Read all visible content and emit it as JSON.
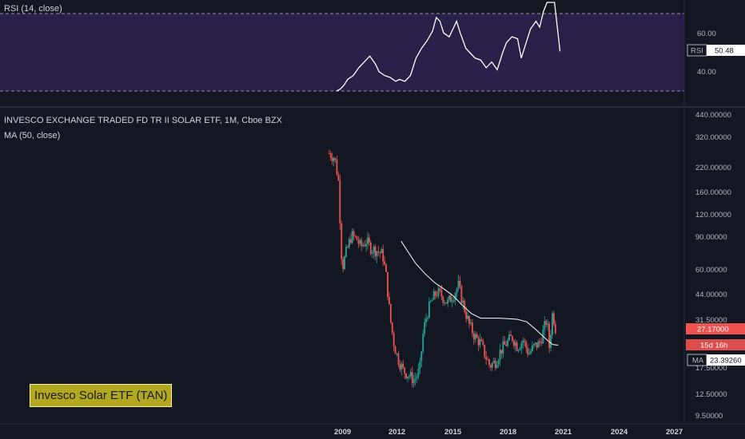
{
  "rsi": {
    "label": "RSI (14, close)",
    "value_tag": "RSI",
    "value": "50.48",
    "y_ticks": [
      "60.00",
      "40.00"
    ],
    "ylim": [
      30,
      85
    ],
    "levels": [
      70,
      30
    ]
  },
  "main": {
    "title": "INVESCO EXCHANGE TRADED FD TR II SOLAR ETF, 1M, Cboe BZX",
    "ma_label": "MA (50, close)",
    "price_ticks": [
      "440.00000",
      "320.00000",
      "220.00000",
      "160.00000",
      "120.00000",
      "90.00000",
      "60.00000",
      "44.00000",
      "31.50000",
      "17.50000",
      "12.50000",
      "9.50000"
    ],
    "last_price": "27.17000",
    "countdown": "15d 16h",
    "ma_tag": "MA",
    "ma_value": "23.39260",
    "x_ticks": [
      "2009",
      "2012",
      "2015",
      "2018",
      "2021",
      "2024",
      "2027"
    ],
    "caption": "Invesco Solar ETF (TAN)"
  },
  "colors": {
    "up": "#26a69a",
    "down": "#ef5350",
    "ma": "#ffffff",
    "rsi": "#ffffff",
    "rsi_band": "#7e57c2",
    "bg": "#131722"
  },
  "chart_data": [
    {
      "type": "line",
      "title": "RSI (14, close)",
      "ylim": [
        30,
        85
      ],
      "series": [
        {
          "name": "RSI (14, close)",
          "x": [
            2008.7,
            2008.9,
            2009.1,
            2009.3,
            2009.6,
            2009.9,
            2010.2,
            2010.5,
            2010.8,
            2011.0,
            2011.3,
            2011.6,
            2011.9,
            2012.1,
            2012.4,
            2012.7,
            2013.0,
            2013.3,
            2013.6,
            2013.9,
            2014.1,
            2014.3,
            2014.5,
            2014.8,
            2015.0,
            2015.2,
            2015.4,
            2015.7,
            2015.9,
            2016.2,
            2016.5,
            2016.8,
            2017.1,
            2017.4,
            2017.7,
            2017.9,
            2018.2,
            2018.5,
            2018.7,
            2018.9,
            2019.2,
            2019.5,
            2019.7,
            2019.9,
            2020.1,
            2020.3,
            2020.5,
            2020.8
          ],
          "y": [
            30,
            31,
            33,
            36,
            38,
            42,
            45,
            48,
            44,
            40,
            38,
            37,
            35,
            36,
            35,
            38,
            47,
            52,
            56,
            61,
            68,
            66,
            60,
            58,
            62,
            66,
            60,
            52,
            50,
            47,
            46,
            42,
            45,
            41,
            50,
            55,
            58,
            57,
            47,
            53,
            62,
            66,
            63,
            71,
            78,
            80,
            85,
            50.48
          ]
        }
      ]
    },
    {
      "type": "candlestick",
      "title": "INVESCO EXCHANGE TRADED FD TR II SOLAR ETF, 1M, Cboe BZX",
      "y_scale": "log",
      "ylim": [
        9.5,
        440
      ],
      "series": [
        {
          "name": "Price",
          "x": [
            2008.3,
            2008.6,
            2008.8,
            2009.0,
            2009.2,
            2009.5,
            2009.8,
            2010.0,
            2010.3,
            2010.6,
            2010.9,
            2011.2,
            2011.4,
            2011.6,
            2011.8,
            2012.0,
            2012.3,
            2012.6,
            2012.9,
            2013.2,
            2013.4,
            2013.6,
            2013.8,
            2014.1,
            2014.4,
            2014.7,
            2015.0,
            2015.3,
            2015.6,
            2015.9,
            2016.2,
            2016.5,
            2016.8,
            2017.0,
            2017.3,
            2017.6,
            2017.9,
            2018.2,
            2018.5,
            2018.8,
            2019.1,
            2019.4,
            2019.7,
            2019.9,
            2020.1,
            2020.2,
            2020.4,
            2020.6
          ],
          "y": [
            270,
            255,
            190,
            62,
            75,
            95,
            90,
            82,
            88,
            80,
            78,
            74,
            55,
            33,
            24,
            20,
            17,
            16,
            15,
            17,
            28,
            35,
            40,
            46,
            44,
            40,
            44,
            50,
            38,
            30,
            26,
            24,
            20,
            18,
            19,
            22,
            24,
            26,
            23,
            25,
            21,
            23,
            24,
            28,
            33,
            22,
            36,
            27.17
          ]
        },
        {
          "name": "MA (50, close)",
          "x": [
            2012.2,
            2012.6,
            2013.0,
            2013.5,
            2014.0,
            2014.5,
            2015.0,
            2015.5,
            2016.0,
            2016.5,
            2017.0,
            2017.5,
            2018.0,
            2018.5,
            2019.0,
            2019.5,
            2020.0,
            2020.4,
            2020.7
          ],
          "y": [
            88,
            76,
            66,
            58,
            52,
            48,
            44,
            39,
            35,
            33,
            33,
            33,
            32.8,
            32.5,
            31.5,
            28.5,
            25.5,
            23.6,
            23.39
          ]
        }
      ]
    }
  ]
}
